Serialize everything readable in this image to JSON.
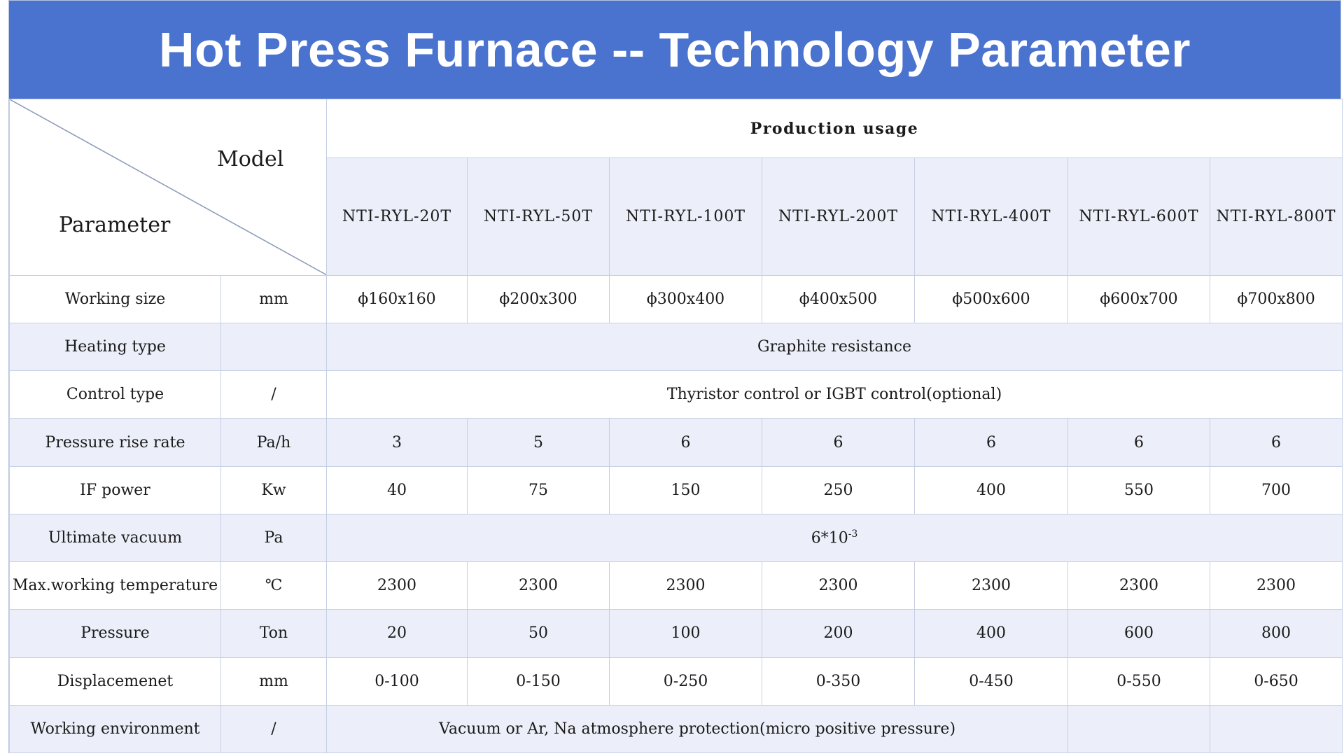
{
  "title": "Hot Press Furnace -- Technology Parameter",
  "header": {
    "model_label": "Model",
    "parameter_label": "Parameter",
    "production_usage": "Production usage",
    "models": [
      "NTI-RYL-20T",
      "NTI-RYL-50T",
      "NTI-RYL-100T",
      "NTI-RYL-200T",
      "NTI-RYL-400T",
      "NTI-RYL-600T",
      "NTI-RYL-800T"
    ]
  },
  "rows": {
    "working_size": {
      "name": "Working size",
      "unit": "mm",
      "values": [
        "ϕ160x160",
        "ϕ200x300",
        "ϕ300x400",
        "ϕ400x500",
        "ϕ500x600",
        "ϕ600x700",
        "ϕ700x800"
      ]
    },
    "heating_type": {
      "name": "Heating type",
      "unit": "",
      "value": "Graphite resistance"
    },
    "control_type": {
      "name": "Control type",
      "unit": "/",
      "value": "Thyristor control or IGBT control(optional)"
    },
    "pressure_rise_rate": {
      "name": "Pressure rise rate",
      "unit": "Pa/h",
      "values": [
        "3",
        "5",
        "6",
        "6",
        "6",
        "6",
        "6"
      ]
    },
    "if_power": {
      "name": "IF power",
      "unit": "Kw",
      "values": [
        "40",
        "75",
        "150",
        "250",
        "400",
        "550",
        "700"
      ]
    },
    "ultimate_vacuum": {
      "name": "Ultimate vacuum",
      "unit": "Pa",
      "value_base": "6*10",
      "value_exp": "-3"
    },
    "max_temp": {
      "name": "Max.working temperature",
      "unit": "℃",
      "values": [
        "2300",
        "2300",
        "2300",
        "2300",
        "2300",
        "2300",
        "2300"
      ]
    },
    "pressure": {
      "name": "Pressure",
      "unit": "Ton",
      "values": [
        "20",
        "50",
        "100",
        "200",
        "400",
        "600",
        "800"
      ]
    },
    "displacement": {
      "name": "Displacemenet",
      "unit": "mm",
      "values": [
        "0-100",
        "0-150",
        "0-250",
        "0-350",
        "0-450",
        "0-550",
        "0-650"
      ]
    },
    "working_env": {
      "name": "Working environment",
      "unit": "/",
      "value": "Vacuum or Ar, Na atmosphere protection(micro positive pressure)"
    }
  }
}
